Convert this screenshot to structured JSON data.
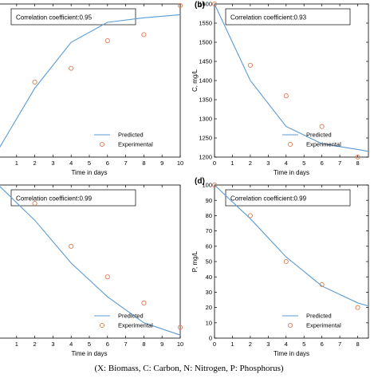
{
  "caption": "(X: Biomass, C: Carbon, N: Nitrogen, P: Phosphorus)",
  "colors": {
    "predicted": "#5b9bd5",
    "experimental": "#e07b54",
    "axis": "#000000"
  },
  "chart_data": [
    {
      "panel": "a",
      "type": "line",
      "panel_label": "",
      "annotation": "Correlation coefficient:0.95",
      "xlabel": "Time in days",
      "ylabel": "",
      "xlim": [
        0,
        10
      ],
      "ylim": [
        0,
        100
      ],
      "xticks": [
        1,
        2,
        3,
        4,
        5,
        6,
        7,
        8,
        9,
        10
      ],
      "yticks": [],
      "legend": {
        "placement": "bottom-right",
        "entries": [
          "Predicted",
          "Experimental"
        ]
      },
      "series": [
        {
          "name": "Predicted",
          "kind": "line",
          "x": [
            0,
            2,
            4,
            6,
            8,
            10
          ],
          "y": [
            5,
            45,
            75,
            88,
            91,
            93
          ]
        },
        {
          "name": "Experimental",
          "kind": "scatter",
          "x": [
            2,
            4,
            6,
            8,
            10
          ],
          "y": [
            49,
            58,
            76,
            80,
            99
          ]
        }
      ]
    },
    {
      "panel": "b",
      "type": "line",
      "panel_label": "(b)",
      "annotation": "Correlation coefficient:0.93",
      "xlabel": "Time in days",
      "ylabel": "C, mg/L",
      "xlim": [
        0,
        8.6
      ],
      "ylim": [
        1200,
        1600
      ],
      "xticks": [
        0,
        1,
        2,
        3,
        4,
        5,
        6,
        7,
        8
      ],
      "yticks": [
        1200,
        1250,
        1300,
        1350,
        1400,
        1450,
        1500,
        1550,
        1600
      ],
      "legend": {
        "placement": "bottom-right",
        "entries": [
          "Predicted",
          "Experimental"
        ]
      },
      "series": [
        {
          "name": "Predicted",
          "kind": "line",
          "x": [
            0,
            2,
            4,
            6,
            8,
            8.6
          ],
          "y": [
            1600,
            1400,
            1280,
            1235,
            1220,
            1215
          ]
        },
        {
          "name": "Experimental",
          "kind": "scatter",
          "x": [
            0,
            2,
            4,
            6,
            8
          ],
          "y": [
            1600,
            1440,
            1360,
            1280,
            1200
          ]
        }
      ]
    },
    {
      "panel": "c",
      "type": "line",
      "panel_label": "",
      "annotation": "Correlation coefficient:0.99",
      "xlabel": "Time in days",
      "ylabel": "",
      "xlim": [
        0,
        10
      ],
      "ylim": [
        0,
        100
      ],
      "xticks": [
        1,
        2,
        3,
        4,
        5,
        6,
        7,
        8,
        9,
        10
      ],
      "yticks": [],
      "legend": {
        "placement": "bottom-right",
        "entries": [
          "Predicted",
          "Experimental"
        ]
      },
      "series": [
        {
          "name": "Predicted",
          "kind": "line",
          "x": [
            0,
            2,
            4,
            6,
            8,
            10
          ],
          "y": [
            100,
            77,
            49,
            27,
            10,
            2
          ]
        },
        {
          "name": "Experimental",
          "kind": "scatter",
          "x": [
            2,
            4,
            6,
            8,
            10
          ],
          "y": [
            88,
            60,
            40,
            23,
            7
          ]
        }
      ]
    },
    {
      "panel": "d",
      "type": "line",
      "panel_label": "(d)",
      "annotation": "Correlation coefficient:0.99",
      "xlabel": "Time in days",
      "ylabel": "P, mg/L",
      "xlim": [
        0,
        8.6
      ],
      "ylim": [
        0,
        100
      ],
      "xticks": [
        0,
        1,
        2,
        3,
        4,
        5,
        6,
        7,
        8
      ],
      "yticks": [
        0,
        10,
        20,
        30,
        40,
        50,
        60,
        70,
        80,
        90,
        100
      ],
      "legend": {
        "placement": "bottom-right",
        "entries": [
          "Predicted",
          "Experimental"
        ]
      },
      "series": [
        {
          "name": "Predicted",
          "kind": "line",
          "x": [
            0,
            2,
            4,
            6,
            8,
            8.6
          ],
          "y": [
            100,
            78,
            53,
            34,
            23,
            21
          ]
        },
        {
          "name": "Experimental",
          "kind": "scatter",
          "x": [
            0,
            2,
            4,
            6,
            8
          ],
          "y": [
            100,
            80,
            50,
            35,
            20
          ]
        }
      ]
    }
  ]
}
